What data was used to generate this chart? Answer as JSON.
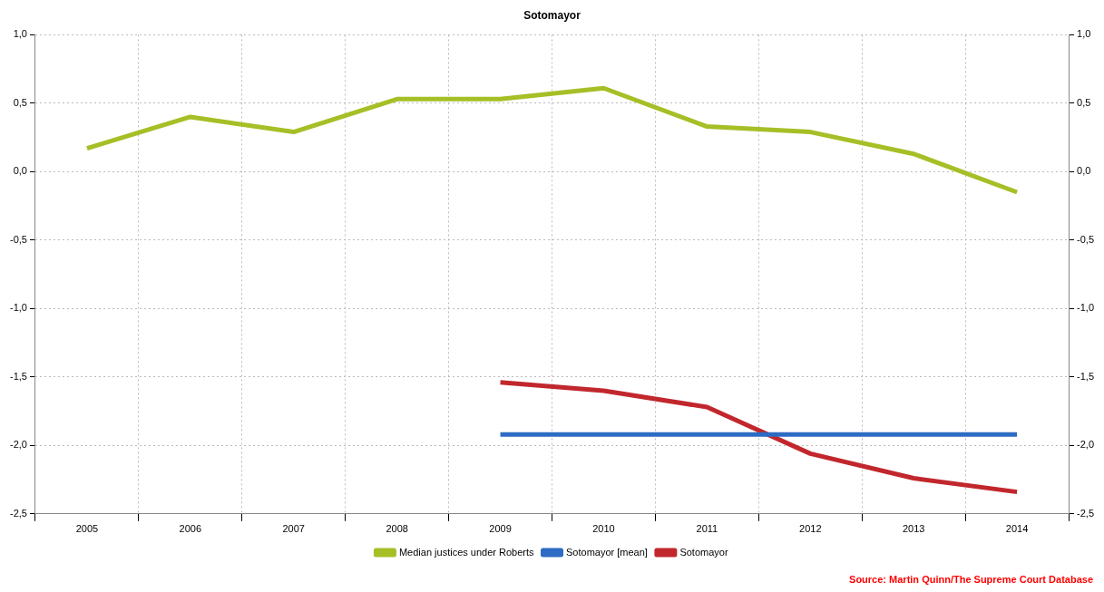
{
  "chart_data": {
    "type": "line",
    "title": "Sotomayor",
    "categories": [
      "2005",
      "2006",
      "2007",
      "2008",
      "2009",
      "2010",
      "2011",
      "2012",
      "2013",
      "2014"
    ],
    "series": [
      {
        "name": "Median justices under Roberts",
        "color": "#a5bf26",
        "values": [
          0.17,
          0.4,
          0.29,
          0.53,
          0.53,
          0.61,
          0.33,
          0.29,
          0.13,
          -0.15
        ]
      },
      {
        "name": "Sotomayor [mean]",
        "color": "#2d6bc4",
        "values": [
          null,
          null,
          null,
          null,
          -1.92,
          -1.92,
          -1.92,
          -1.92,
          -1.92,
          -1.92
        ]
      },
      {
        "name": "Sotomayor",
        "color": "#c1272d",
        "values": [
          null,
          null,
          null,
          null,
          -1.54,
          -1.6,
          -1.72,
          -2.06,
          -2.24,
          -2.34
        ]
      }
    ],
    "ylim": [
      -2.5,
      1.0
    ],
    "yticks": [
      {
        "value": -2.5,
        "label": "-2,5"
      },
      {
        "value": -2,
        "label": "-2,0"
      },
      {
        "value": -1.5,
        "label": "-1,5"
      },
      {
        "value": -1,
        "label": "-1,0"
      },
      {
        "value": -0.5,
        "label": "-0,5"
      },
      {
        "value": 0,
        "label": "0,0"
      },
      {
        "value": 0.5,
        "label": "0,5"
      },
      {
        "value": 1,
        "label": "1,0"
      }
    ],
    "y2lim": [
      -2.5,
      1.0
    ],
    "y2ticks": [
      {
        "value": -2.5,
        "label": "-2,5"
      },
      {
        "value": -2,
        "label": "-2,0"
      },
      {
        "value": -1.5,
        "label": "-1,5"
      },
      {
        "value": -1,
        "label": "-1,0"
      },
      {
        "value": -0.5,
        "label": "-0,5"
      },
      {
        "value": 0,
        "label": "0,0"
      },
      {
        "value": 0.5,
        "label": "0,5"
      },
      {
        "value": 1,
        "label": "1,0"
      }
    ],
    "grid": true,
    "legend": "bottom",
    "marker": "none",
    "line_style": "solid",
    "annotations": [
      "Source: Martin Quinn/The Supreme Court Database"
    ]
  }
}
